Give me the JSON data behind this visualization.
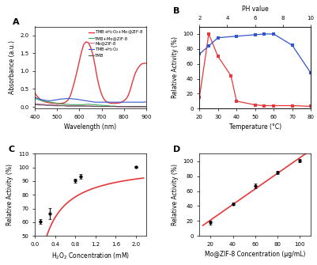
{
  "panel_A": {
    "wavelength": [
      400,
      410,
      420,
      430,
      440,
      450,
      460,
      470,
      480,
      490,
      500,
      510,
      520,
      530,
      540,
      550,
      560,
      570,
      580,
      590,
      600,
      610,
      620,
      630,
      640,
      650,
      660,
      670,
      680,
      690,
      700,
      710,
      720,
      730,
      740,
      750,
      760,
      770,
      780,
      790,
      800,
      810,
      820,
      830,
      840,
      850,
      860,
      870,
      880,
      890,
      900
    ],
    "red_line": [
      0.38,
      0.3,
      0.23,
      0.18,
      0.15,
      0.13,
      0.12,
      0.11,
      0.1,
      0.1,
      0.09,
      0.09,
      0.1,
      0.11,
      0.14,
      0.2,
      0.32,
      0.52,
      0.75,
      1.0,
      1.28,
      1.55,
      1.75,
      1.82,
      1.8,
      1.68,
      1.48,
      1.18,
      0.82,
      0.55,
      0.35,
      0.22,
      0.15,
      0.12,
      0.1,
      0.1,
      0.1,
      0.1,
      0.11,
      0.13,
      0.17,
      0.22,
      0.32,
      0.5,
      0.72,
      0.92,
      1.05,
      1.14,
      1.2,
      1.22,
      1.22
    ],
    "green_line": [
      0.24,
      0.21,
      0.19,
      0.17,
      0.16,
      0.15,
      0.14,
      0.13,
      0.12,
      0.11,
      0.1,
      0.09,
      0.08,
      0.08,
      0.07,
      0.07,
      0.06,
      0.06,
      0.06,
      0.06,
      0.06,
      0.06,
      0.06,
      0.07,
      0.07,
      0.07,
      0.06,
      0.06,
      0.05,
      0.05,
      0.04,
      0.04,
      0.03,
      0.03,
      0.02,
      0.02,
      0.02,
      0.01,
      0.01,
      0.01,
      0.01,
      0.01,
      0.0,
      0.0,
      0.0,
      0.0,
      0.0,
      0.0,
      0.0,
      0.0,
      0.0
    ],
    "pink_line": [
      0.09,
      0.08,
      0.08,
      0.07,
      0.07,
      0.06,
      0.06,
      0.06,
      0.05,
      0.05,
      0.05,
      0.04,
      0.04,
      0.04,
      0.04,
      0.03,
      0.03,
      0.03,
      0.03,
      0.03,
      0.03,
      0.03,
      0.03,
      0.02,
      0.02,
      0.02,
      0.02,
      0.02,
      0.02,
      0.01,
      0.01,
      0.01,
      0.01,
      0.01,
      0.01,
      0.01,
      0.01,
      0.0,
      0.0,
      0.0,
      0.0,
      0.0,
      0.0,
      0.0,
      0.0,
      0.0,
      0.0,
      0.0,
      0.0,
      0.0,
      0.0
    ],
    "blue_line": [
      0.27,
      0.24,
      0.22,
      0.2,
      0.19,
      0.18,
      0.17,
      0.17,
      0.18,
      0.19,
      0.2,
      0.21,
      0.22,
      0.22,
      0.23,
      0.23,
      0.23,
      0.22,
      0.22,
      0.21,
      0.2,
      0.19,
      0.18,
      0.17,
      0.16,
      0.15,
      0.14,
      0.13,
      0.13,
      0.13,
      0.13,
      0.13,
      0.13,
      0.13,
      0.13,
      0.13,
      0.13,
      0.13,
      0.13,
      0.13,
      0.13,
      0.13,
      0.13,
      0.13,
      0.13,
      0.13,
      0.13,
      0.13,
      0.13,
      0.13,
      0.14
    ],
    "dark_line": [
      0.06,
      0.06,
      0.05,
      0.05,
      0.05,
      0.04,
      0.04,
      0.04,
      0.04,
      0.03,
      0.03,
      0.03,
      0.03,
      0.03,
      0.02,
      0.02,
      0.02,
      0.02,
      0.02,
      0.02,
      0.02,
      0.02,
      0.02,
      0.02,
      0.02,
      0.02,
      0.01,
      0.01,
      0.01,
      0.01,
      0.01,
      0.01,
      0.01,
      0.01,
      0.01,
      0.01,
      0.01,
      0.01,
      0.01,
      0.01,
      0.01,
      0.01,
      0.01,
      0.01,
      0.01,
      0.01,
      0.01,
      0.01,
      0.01,
      0.01,
      0.01
    ]
  },
  "panel_B": {
    "temp_red_x": [
      20,
      25,
      30,
      37,
      40,
      50,
      55,
      60,
      70,
      80
    ],
    "temp_red_y": [
      15,
      100,
      70,
      44,
      10,
      5,
      4,
      4,
      4,
      3
    ],
    "temp_blue_x": [
      20,
      25,
      30,
      40,
      50,
      55,
      60,
      70,
      80
    ],
    "temp_blue_y": [
      73,
      84,
      95,
      97,
      99,
      100,
      100,
      85,
      48
    ]
  },
  "panel_C": {
    "h2o2_x": [
      0.1,
      0.3,
      0.8,
      0.9,
      2.0
    ],
    "h2o2_y": [
      60.5,
      66.5,
      90.5,
      93.5,
      100.5
    ],
    "h2o2_err": [
      1.5,
      4.0,
      1.5,
      1.5,
      0.5
    ],
    "xlim": [
      0.0,
      2.2
    ],
    "ylim": [
      50,
      110
    ],
    "xticks": [
      0.0,
      0.4,
      0.8,
      1.2,
      1.6,
      2.0
    ],
    "yticks": [
      50,
      60,
      70,
      80,
      90,
      100,
      110
    ]
  },
  "panel_D": {
    "conc_x": [
      20,
      40,
      60,
      80,
      100
    ],
    "conc_y": [
      18,
      43,
      67,
      85,
      101
    ],
    "conc_err": [
      2.5,
      2.0,
      3.0,
      2.5,
      2.0
    ],
    "xlim": [
      10,
      110
    ],
    "ylim": [
      0,
      110
    ],
    "xticks": [
      20,
      40,
      60,
      80,
      100
    ],
    "yticks": [
      0,
      20,
      40,
      60,
      80,
      100
    ]
  },
  "colors": {
    "red": "#e8373a",
    "green": "#3aaa5a",
    "pink": "#d868aa",
    "blue": "#3355cc",
    "dark": "#555555"
  }
}
